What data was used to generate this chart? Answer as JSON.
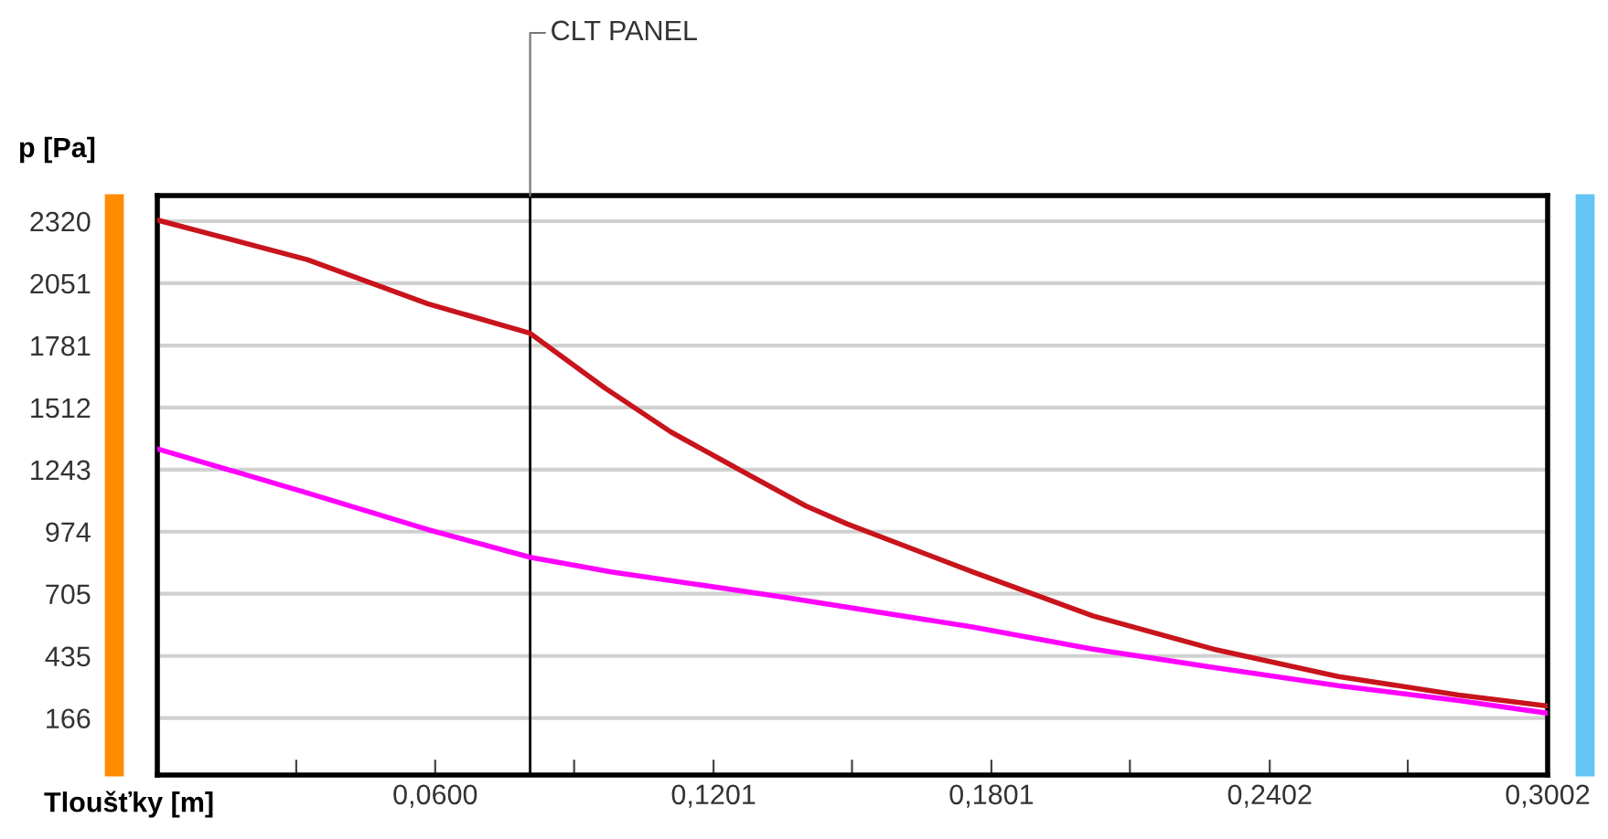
{
  "chart_data": {
    "type": "line",
    "xlabel": "Tloušťky [m]",
    "ylabel": "p [Pa]",
    "xlim": [
      0,
      0.3002
    ],
    "ylim": [
      -81,
      2431
    ],
    "xticks": [
      {
        "value": 0.03,
        "label": null
      },
      {
        "value": 0.06,
        "label": "0,0600"
      },
      {
        "value": 0.09,
        "label": null
      },
      {
        "value": 0.1201,
        "label": "0,1201"
      },
      {
        "value": 0.15,
        "label": null
      },
      {
        "value": 0.1801,
        "label": "0,1801"
      },
      {
        "value": 0.21,
        "label": null
      },
      {
        "value": 0.2402,
        "label": "0,2402"
      },
      {
        "value": 0.27,
        "label": null
      },
      {
        "value": 0.3002,
        "label": "0,3002"
      }
    ],
    "yticks": [
      166,
      435,
      705,
      974,
      1243,
      1512,
      1781,
      2051,
      2320
    ],
    "grid": "y",
    "marker": "none",
    "line_style": "solid",
    "ref_lines": [
      {
        "axis": "x",
        "value": 0.0805,
        "label": "CLT PANEL",
        "color": "#000000"
      }
    ],
    "series": [
      {
        "color": "#c8141c",
        "x": [
          0,
          0.0324,
          0.0584,
          0.0805,
          0.0967,
          0.111,
          0.124,
          0.14,
          0.149,
          0.176,
          0.202,
          0.228,
          0.255,
          0.281,
          0.3002
        ],
        "values": [
          2325,
          2153,
          1962,
          1834,
          1596,
          1405,
          1261,
          1086,
          1007,
          800,
          609,
          465,
          346,
          266,
          218
        ]
      },
      {
        "color": "#ff00ff",
        "x": [
          0,
          0.0324,
          0.0584,
          0.0805,
          0.098,
          0.136,
          0.176,
          0.202,
          0.228,
          0.255,
          0.281,
          0.3002
        ],
        "values": [
          1333,
          1142,
          983,
          863,
          800,
          688,
          561,
          465,
          386,
          306,
          242,
          187
        ]
      }
    ]
  }
}
